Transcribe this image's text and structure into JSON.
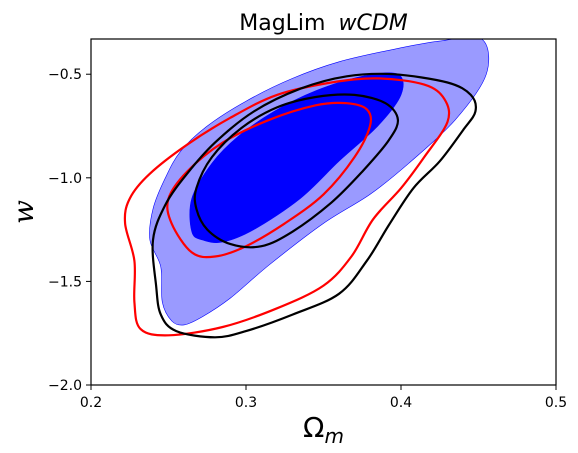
{
  "chart_data": {
    "type": "contour",
    "title_prefix": "MagLim",
    "title_italic": "wCDM",
    "xlabel_main": "Ω",
    "xlabel_sub": "m",
    "ylabel": "w",
    "xlim": [
      0.2,
      0.5
    ],
    "ylim": [
      -2.0,
      -0.33
    ],
    "xticks": [
      0.2,
      0.3,
      0.4,
      0.5
    ],
    "xtick_labels": [
      "0.2",
      "0.3",
      "0.4",
      "0.5"
    ],
    "yticks": [
      -2.0,
      -1.5,
      -1.0,
      -0.5
    ],
    "ytick_labels": [
      "−2.0",
      "−1.5",
      "−1.0",
      "−0.5"
    ],
    "grid": false,
    "colors": {
      "blue_fill": "#0000ff",
      "blue_outer_fill": "#9a9aff",
      "red": "#ff0000",
      "black": "#000000"
    },
    "series": [
      {
        "color_key": "blue",
        "style": "filled",
        "outer": [
          [
            0.245,
            -1.43
          ],
          [
            0.238,
            -1.3
          ],
          [
            0.24,
            -1.15
          ],
          [
            0.248,
            -1.0
          ],
          [
            0.258,
            -0.87
          ],
          [
            0.275,
            -0.75
          ],
          [
            0.3,
            -0.63
          ],
          [
            0.33,
            -0.52
          ],
          [
            0.36,
            -0.44
          ],
          [
            0.395,
            -0.38
          ],
          [
            0.425,
            -0.34
          ],
          [
            0.452,
            -0.33
          ],
          [
            0.455,
            -0.5
          ],
          [
            0.435,
            -0.72
          ],
          [
            0.405,
            -0.93
          ],
          [
            0.38,
            -1.08
          ],
          [
            0.35,
            -1.22
          ],
          [
            0.315,
            -1.42
          ],
          [
            0.29,
            -1.58
          ],
          [
            0.272,
            -1.67
          ],
          [
            0.26,
            -1.71
          ],
          [
            0.252,
            -1.69
          ],
          [
            0.246,
            -1.6
          ]
        ],
        "inner": [
          [
            0.265,
            -1.26
          ],
          [
            0.265,
            -1.1
          ],
          [
            0.278,
            -0.93
          ],
          [
            0.295,
            -0.8
          ],
          [
            0.318,
            -0.68
          ],
          [
            0.345,
            -0.58
          ],
          [
            0.375,
            -0.51
          ],
          [
            0.398,
            -0.5
          ],
          [
            0.4,
            -0.6
          ],
          [
            0.385,
            -0.75
          ],
          [
            0.36,
            -0.92
          ],
          [
            0.335,
            -1.1
          ],
          [
            0.305,
            -1.25
          ],
          [
            0.285,
            -1.31
          ],
          [
            0.272,
            -1.3
          ]
        ]
      },
      {
        "color_key": "red",
        "style": "line",
        "outer": [
          [
            0.222,
            -1.22
          ],
          [
            0.225,
            -1.1
          ],
          [
            0.238,
            -0.98
          ],
          [
            0.262,
            -0.84
          ],
          [
            0.29,
            -0.71
          ],
          [
            0.32,
            -0.6
          ],
          [
            0.355,
            -0.54
          ],
          [
            0.385,
            -0.52
          ],
          [
            0.415,
            -0.55
          ],
          [
            0.428,
            -0.62
          ],
          [
            0.43,
            -0.73
          ],
          [
            0.415,
            -0.9
          ],
          [
            0.4,
            -1.05
          ],
          [
            0.382,
            -1.2
          ],
          [
            0.368,
            -1.38
          ],
          [
            0.35,
            -1.52
          ],
          [
            0.32,
            -1.63
          ],
          [
            0.285,
            -1.72
          ],
          [
            0.25,
            -1.76
          ],
          [
            0.232,
            -1.73
          ],
          [
            0.228,
            -1.6
          ],
          [
            0.228,
            -1.4
          ]
        ],
        "inner": [
          [
            0.252,
            -1.22
          ],
          [
            0.25,
            -1.1
          ],
          [
            0.262,
            -0.97
          ],
          [
            0.285,
            -0.83
          ],
          [
            0.315,
            -0.72
          ],
          [
            0.345,
            -0.65
          ],
          [
            0.365,
            -0.64
          ],
          [
            0.378,
            -0.67
          ],
          [
            0.38,
            -0.75
          ],
          [
            0.37,
            -0.9
          ],
          [
            0.35,
            -1.08
          ],
          [
            0.325,
            -1.22
          ],
          [
            0.3,
            -1.33
          ],
          [
            0.28,
            -1.38
          ],
          [
            0.265,
            -1.36
          ]
        ]
      },
      {
        "color_key": "black",
        "style": "line",
        "outer": [
          [
            0.242,
            -1.52
          ],
          [
            0.24,
            -1.3
          ],
          [
            0.248,
            -1.13
          ],
          [
            0.262,
            -0.98
          ],
          [
            0.28,
            -0.83
          ],
          [
            0.305,
            -0.68
          ],
          [
            0.335,
            -0.57
          ],
          [
            0.365,
            -0.51
          ],
          [
            0.395,
            -0.5
          ],
          [
            0.43,
            -0.54
          ],
          [
            0.445,
            -0.6
          ],
          [
            0.448,
            -0.68
          ],
          [
            0.44,
            -0.77
          ],
          [
            0.425,
            -0.92
          ],
          [
            0.408,
            -1.05
          ],
          [
            0.392,
            -1.23
          ],
          [
            0.378,
            -1.4
          ],
          [
            0.36,
            -1.56
          ],
          [
            0.33,
            -1.66
          ],
          [
            0.3,
            -1.74
          ],
          [
            0.28,
            -1.77
          ],
          [
            0.255,
            -1.74
          ],
          [
            0.245,
            -1.66
          ]
        ],
        "inner": [
          [
            0.268,
            -1.15
          ],
          [
            0.268,
            -1.05
          ],
          [
            0.278,
            -0.9
          ],
          [
            0.297,
            -0.76
          ],
          [
            0.32,
            -0.66
          ],
          [
            0.345,
            -0.61
          ],
          [
            0.37,
            -0.6
          ],
          [
            0.39,
            -0.64
          ],
          [
            0.398,
            -0.72
          ],
          [
            0.392,
            -0.82
          ],
          [
            0.375,
            -0.97
          ],
          [
            0.355,
            -1.12
          ],
          [
            0.33,
            -1.26
          ],
          [
            0.31,
            -1.33
          ],
          [
            0.29,
            -1.32
          ],
          [
            0.275,
            -1.25
          ]
        ]
      }
    ]
  }
}
